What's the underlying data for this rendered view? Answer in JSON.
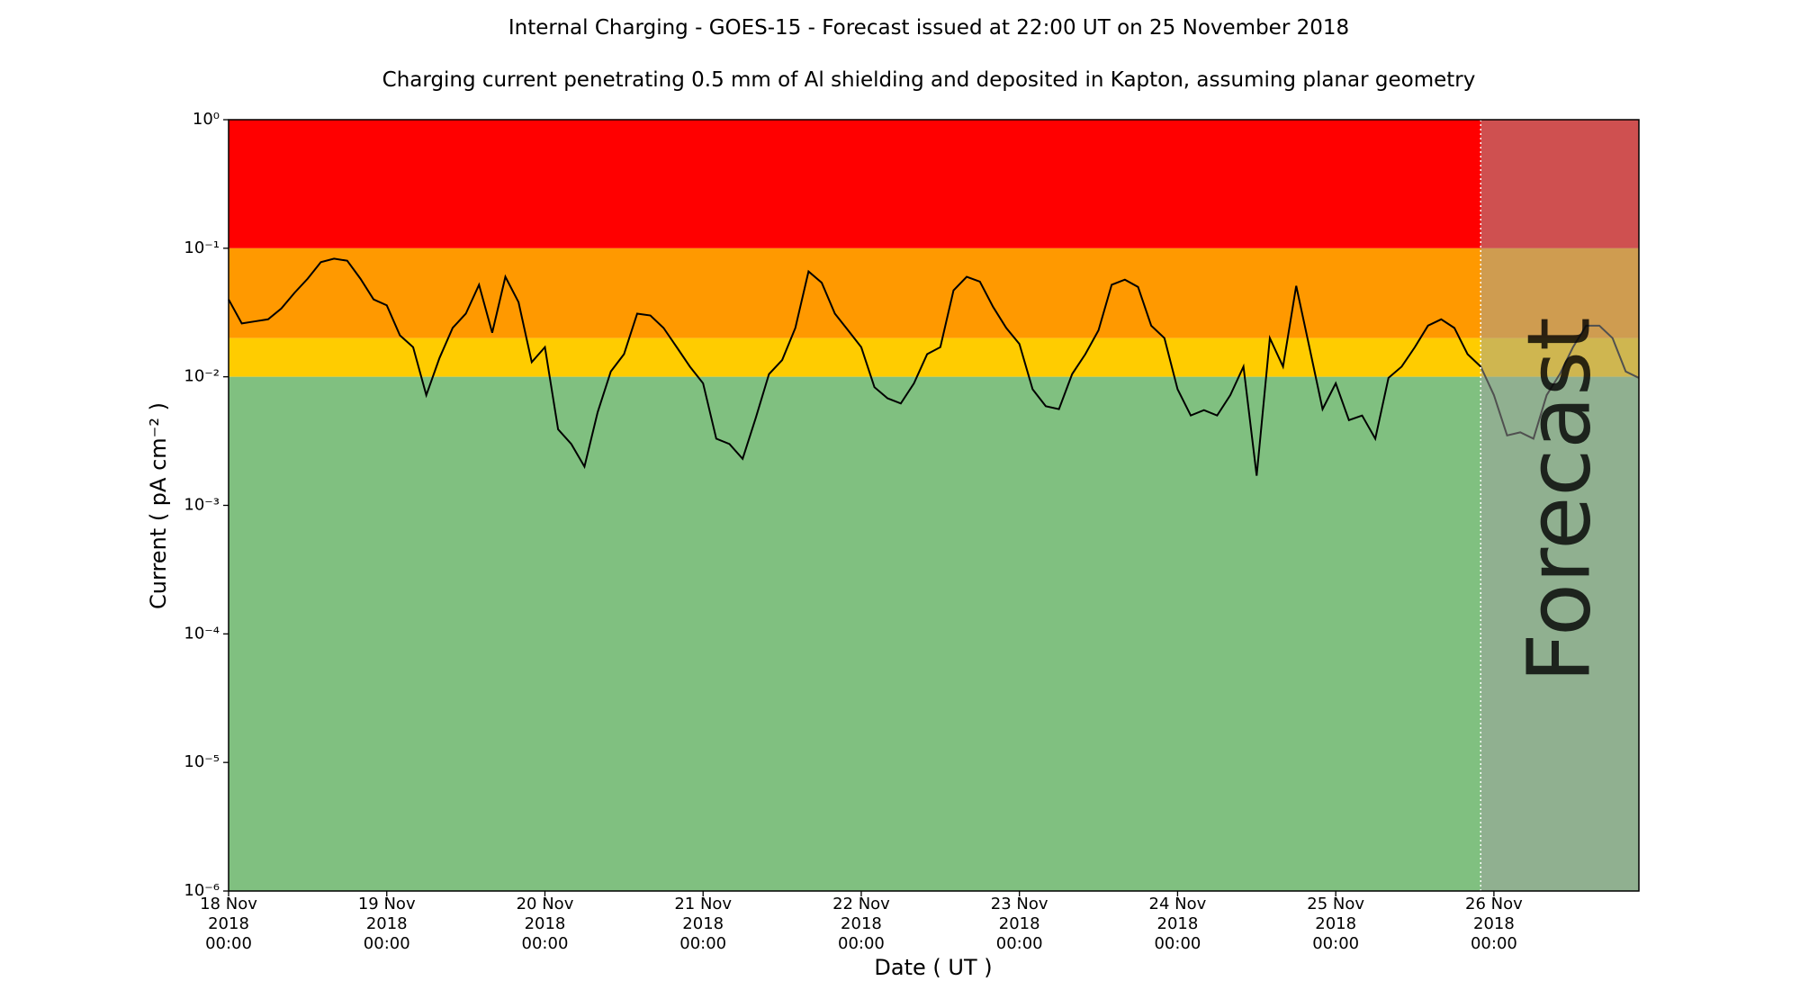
{
  "chart_data": {
    "type": "line",
    "title": "Internal Charging - GOES-15 - Forecast issued at 22:00 UT on 25 November 2018",
    "subtitle": "Charging current penetrating 0.5 mm of Al shielding and deposited in Kapton, assuming planar geometry",
    "x_label": "Date ( UT )",
    "y_label": "Current ( pA cm⁻² )",
    "log_y": true,
    "xlim": [
      "2018-11-18T00:00",
      "2018-11-26T22:00"
    ],
    "ylim": [
      1e-06,
      1
    ],
    "yticks": [
      {
        "value": 1,
        "label": "10⁰"
      },
      {
        "value": 0.1,
        "label": "10⁻¹"
      },
      {
        "value": 0.01,
        "label": "10⁻²"
      },
      {
        "value": 0.001,
        "label": "10⁻³"
      },
      {
        "value": 0.0001,
        "label": "10⁻⁴"
      },
      {
        "value": 1e-05,
        "label": "10⁻⁵"
      },
      {
        "value": 1e-06,
        "label": "10⁻⁶"
      }
    ],
    "xticks": [
      {
        "value": "2018-11-18T00:00",
        "label": "18 Nov\n2018\n00:00"
      },
      {
        "value": "2018-11-19T00:00",
        "label": "19 Nov\n2018\n00:00"
      },
      {
        "value": "2018-11-20T00:00",
        "label": "20 Nov\n2018\n00:00"
      },
      {
        "value": "2018-11-21T00:00",
        "label": "21 Nov\n2018\n00:00"
      },
      {
        "value": "2018-11-22T00:00",
        "label": "22 Nov\n2018\n00:00"
      },
      {
        "value": "2018-11-23T00:00",
        "label": "23 Nov\n2018\n00:00"
      },
      {
        "value": "2018-11-24T00:00",
        "label": "24 Nov\n2018\n00:00"
      },
      {
        "value": "2018-11-25T00:00",
        "label": "25 Nov\n2018\n00:00"
      },
      {
        "value": "2018-11-26T00:00",
        "label": "26 Nov\n2018\n00:00"
      }
    ],
    "bands": [
      {
        "from": 0.1,
        "to": 1,
        "color": "#ff0000"
      },
      {
        "from": 0.02,
        "to": 0.1,
        "color": "#ff9900"
      },
      {
        "from": 0.01,
        "to": 0.02,
        "color": "#ffcc00"
      },
      {
        "from": 1e-06,
        "to": 0.01,
        "color": "#80c080"
      }
    ],
    "forecast": {
      "label": "Forecast",
      "start": "2018-11-25T22:00",
      "color": "#a0a0a0"
    },
    "x": [
      "2018-11-18T00:00",
      "2018-11-18T02:00",
      "2018-11-18T04:00",
      "2018-11-18T06:00",
      "2018-11-18T08:00",
      "2018-11-18T10:00",
      "2018-11-18T12:00",
      "2018-11-18T14:00",
      "2018-11-18T16:00",
      "2018-11-18T18:00",
      "2018-11-18T20:00",
      "2018-11-18T22:00",
      "2018-11-19T00:00",
      "2018-11-19T02:00",
      "2018-11-19T04:00",
      "2018-11-19T06:00",
      "2018-11-19T08:00",
      "2018-11-19T10:00",
      "2018-11-19T12:00",
      "2018-11-19T14:00",
      "2018-11-19T16:00",
      "2018-11-19T18:00",
      "2018-11-19T20:00",
      "2018-11-19T22:00",
      "2018-11-20T00:00",
      "2018-11-20T02:00",
      "2018-11-20T04:00",
      "2018-11-20T06:00",
      "2018-11-20T08:00",
      "2018-11-20T10:00",
      "2018-11-20T12:00",
      "2018-11-20T14:00",
      "2018-11-20T16:00",
      "2018-11-20T18:00",
      "2018-11-20T20:00",
      "2018-11-20T22:00",
      "2018-11-21T00:00",
      "2018-11-21T02:00",
      "2018-11-21T04:00",
      "2018-11-21T06:00",
      "2018-11-21T08:00",
      "2018-11-21T10:00",
      "2018-11-21T12:00",
      "2018-11-21T14:00",
      "2018-11-21T16:00",
      "2018-11-21T18:00",
      "2018-11-21T20:00",
      "2018-11-21T22:00",
      "2018-11-22T00:00",
      "2018-11-22T02:00",
      "2018-11-22T04:00",
      "2018-11-22T06:00",
      "2018-11-22T08:00",
      "2018-11-22T10:00",
      "2018-11-22T12:00",
      "2018-11-22T14:00",
      "2018-11-22T16:00",
      "2018-11-22T18:00",
      "2018-11-22T20:00",
      "2018-11-22T22:00",
      "2018-11-23T00:00",
      "2018-11-23T02:00",
      "2018-11-23T04:00",
      "2018-11-23T06:00",
      "2018-11-23T08:00",
      "2018-11-23T10:00",
      "2018-11-23T12:00",
      "2018-11-23T14:00",
      "2018-11-23T16:00",
      "2018-11-23T18:00",
      "2018-11-23T20:00",
      "2018-11-23T22:00",
      "2018-11-24T00:00",
      "2018-11-24T02:00",
      "2018-11-24T04:00",
      "2018-11-24T06:00",
      "2018-11-24T08:00",
      "2018-11-24T10:00",
      "2018-11-24T12:00",
      "2018-11-24T14:00",
      "2018-11-24T16:00",
      "2018-11-24T18:00",
      "2018-11-24T20:00",
      "2018-11-24T22:00",
      "2018-11-25T00:00",
      "2018-11-25T02:00",
      "2018-11-25T04:00",
      "2018-11-25T06:00",
      "2018-11-25T08:00",
      "2018-11-25T10:00",
      "2018-11-25T12:00",
      "2018-11-25T14:00",
      "2018-11-25T16:00",
      "2018-11-25T18:00",
      "2018-11-25T20:00",
      "2018-11-25T22:00",
      "2018-11-26T00:00",
      "2018-11-26T02:00",
      "2018-11-26T04:00",
      "2018-11-26T06:00",
      "2018-11-26T08:00",
      "2018-11-26T10:00",
      "2018-11-26T12:00",
      "2018-11-26T14:00",
      "2018-11-26T16:00",
      "2018-11-26T18:00",
      "2018-11-26T20:00",
      "2018-11-26T22:00"
    ],
    "series": [
      {
        "color": "#000000",
        "values": [
          0.04,
          0.026,
          0.027,
          0.028,
          0.034,
          0.045,
          0.058,
          0.078,
          0.083,
          0.08,
          0.058,
          0.04,
          0.036,
          0.021,
          0.017,
          0.0072,
          0.014,
          0.024,
          0.031,
          0.052,
          0.022,
          0.06,
          0.038,
          0.013,
          0.017,
          0.0039,
          0.003,
          0.002,
          0.0053,
          0.011,
          0.015,
          0.031,
          0.03,
          0.024,
          0.017,
          0.012,
          0.0089,
          0.0033,
          0.003,
          0.0023,
          0.0048,
          0.0105,
          0.0135,
          0.024,
          0.066,
          0.054,
          0.031,
          0.023,
          0.017,
          0.0083,
          0.0068,
          0.0062,
          0.0089,
          0.015,
          0.017,
          0.047,
          0.06,
          0.055,
          0.035,
          0.024,
          0.018,
          0.008,
          0.0059,
          0.0056,
          0.0105,
          0.015,
          0.023,
          0.052,
          0.057,
          0.05,
          0.025,
          0.02,
          0.008,
          0.005,
          0.0055,
          0.005,
          0.0072,
          0.012,
          0.0017,
          0.02,
          0.012,
          0.051,
          0.017,
          0.0056,
          0.0089,
          0.0046,
          0.005,
          0.0033,
          0.0098,
          0.012,
          0.017,
          0.025,
          0.028,
          0.024,
          0.015,
          0.012,
          0.0072,
          0.0035,
          0.0037,
          0.0033,
          0.0072,
          0.0105,
          0.017,
          0.025,
          0.025,
          0.02,
          0.011,
          0.0098
        ]
      }
    ]
  }
}
